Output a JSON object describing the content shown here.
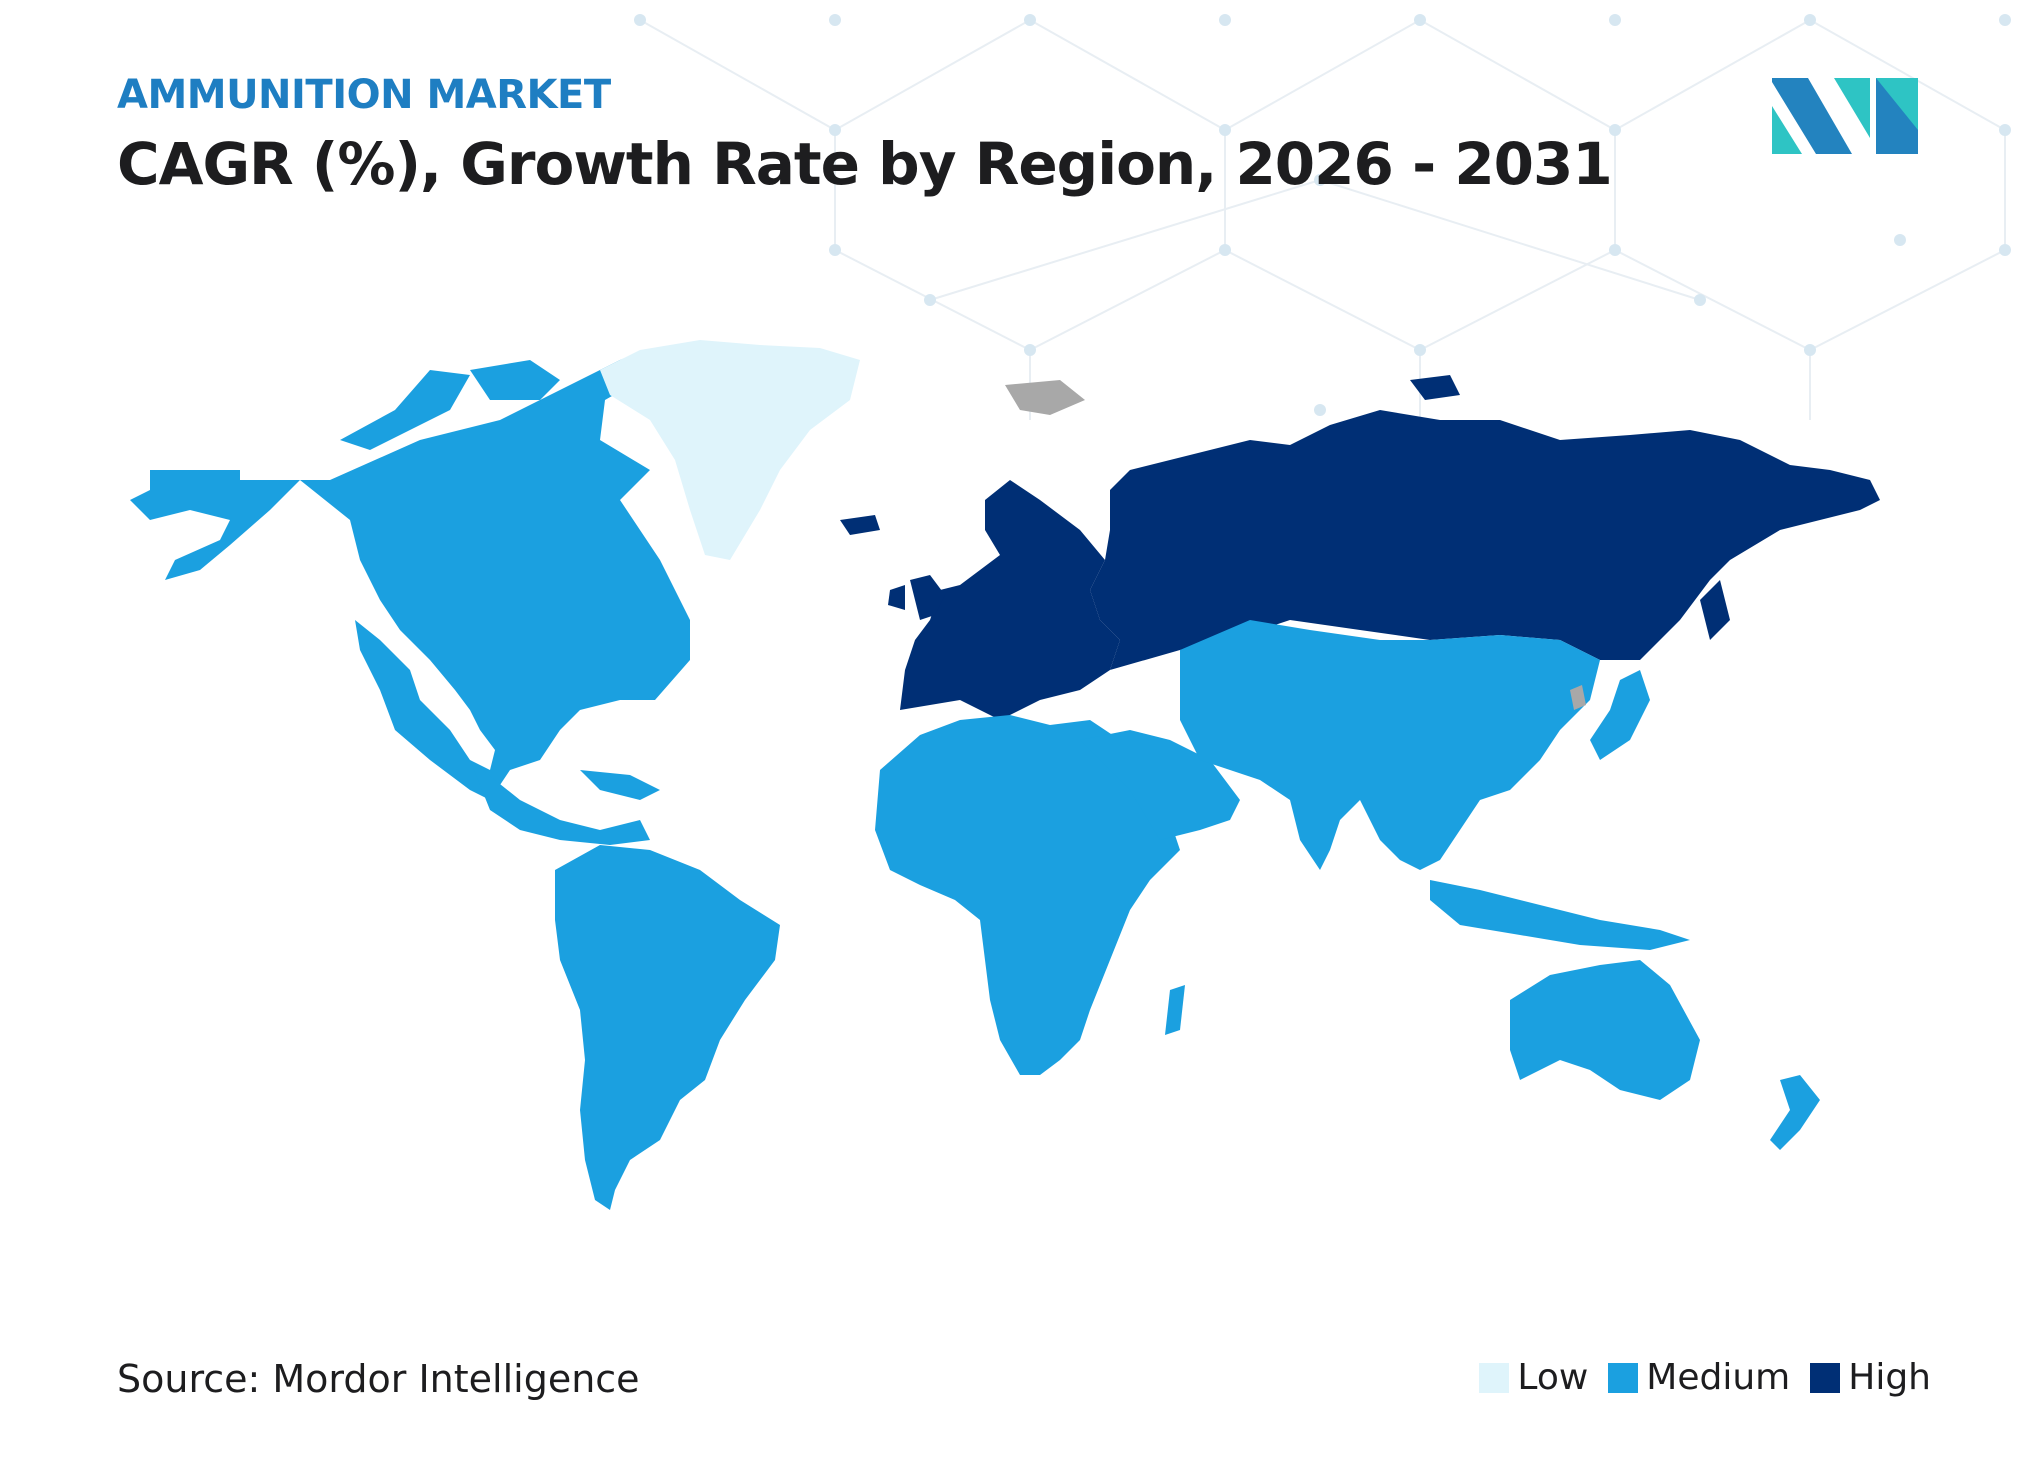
{
  "header": {
    "eyebrow": "AMMUNITION MARKET",
    "title": "CAGR (%), Growth Rate by Region, 2026 - 2031"
  },
  "footer": {
    "source": "Source: Mordor Intelligence"
  },
  "legend": [
    {
      "label": "Low",
      "color": "#dff4fb"
    },
    {
      "label": "Medium",
      "color": "#1ba0e0"
    },
    {
      "label": "High",
      "color": "#002f75"
    }
  ],
  "colors": {
    "eyebrow": "#1e7ec2",
    "no_data": "#a8a8a8",
    "logo_dark": "#2383bf",
    "logo_teal": "#2ec4c4"
  },
  "regions": [
    {
      "name": "North America",
      "level": "Medium"
    },
    {
      "name": "Greenland",
      "level": "Low"
    },
    {
      "name": "South America",
      "level": "Medium"
    },
    {
      "name": "Europe",
      "level": "High"
    },
    {
      "name": "Russia",
      "level": "High"
    },
    {
      "name": "Middle East & Africa",
      "level": "Medium"
    },
    {
      "name": "Asia-Pacific",
      "level": "Medium"
    }
  ]
}
